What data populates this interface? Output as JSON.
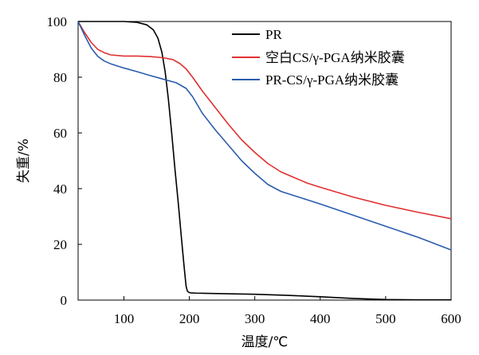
{
  "chart_data": {
    "type": "line",
    "xlabel": "温度/℃",
    "ylabel": "失重/%",
    "xlim": [
      30,
      600
    ],
    "ylim": [
      0,
      100
    ],
    "xticks": [
      100,
      200,
      300,
      400,
      500,
      600
    ],
    "yticks": [
      0,
      20,
      40,
      60,
      80,
      100
    ],
    "grid": false,
    "legend_position": "top-right",
    "series": [
      {
        "name": "PR",
        "color": "#000000",
        "x": [
          30,
          60,
          100,
          120,
          135,
          145,
          152,
          158,
          163,
          168,
          173,
          178,
          183,
          188,
          192,
          195,
          197,
          199,
          200,
          202,
          210,
          250,
          300,
          350,
          400,
          450,
          500,
          550,
          600
        ],
        "y": [
          100,
          100,
          100,
          99.7,
          98.8,
          97,
          94,
          89,
          82,
          72,
          60,
          47,
          35,
          22,
          12,
          5,
          3.2,
          2.8,
          2.7,
          2.6,
          2.5,
          2.3,
          2.1,
          1.7,
          1.2,
          0.6,
          0.2,
          0.1,
          0.1
        ]
      },
      {
        "name": "空白CS/γ-PGA纳米胶囊",
        "color": "#e03030",
        "x": [
          30,
          40,
          50,
          60,
          70,
          80,
          100,
          120,
          140,
          160,
          175,
          185,
          195,
          205,
          220,
          240,
          260,
          280,
          300,
          320,
          340,
          360,
          380,
          400,
          450,
          500,
          550,
          600
        ],
        "y": [
          100,
          96,
          92.5,
          90,
          88.8,
          88,
          87.6,
          87.6,
          87.4,
          87,
          86.3,
          85,
          83,
          80,
          75,
          69,
          63,
          57.5,
          53,
          49,
          46,
          44,
          42,
          40.5,
          37,
          34,
          31.5,
          29.2
        ]
      },
      {
        "name": "PR-CS/γ-PGA纳米胶囊",
        "color": "#2a5cae",
        "x": [
          30,
          40,
          50,
          60,
          70,
          80,
          100,
          120,
          140,
          160,
          180,
          195,
          205,
          220,
          240,
          260,
          280,
          300,
          320,
          340,
          360,
          380,
          400,
          450,
          500,
          550,
          600
        ],
        "y": [
          100,
          95,
          90.5,
          87.5,
          85.8,
          84.8,
          83.3,
          82,
          80.6,
          79.3,
          78,
          76,
          73,
          67,
          61,
          55.5,
          50,
          45.5,
          41.5,
          39,
          37.5,
          36,
          34.5,
          30.5,
          26.5,
          22.5,
          18
        ]
      }
    ]
  }
}
